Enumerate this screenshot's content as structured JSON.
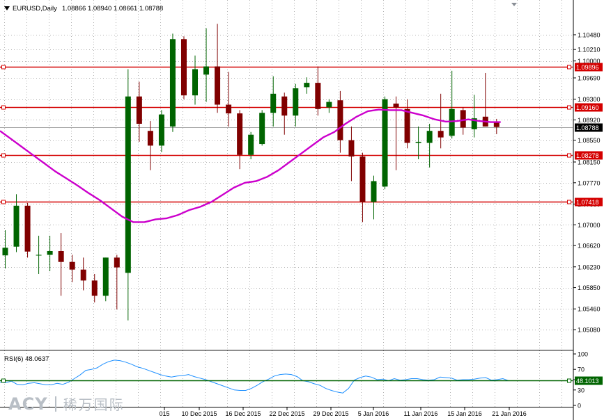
{
  "header": {
    "symbol": "EURUSD,Daily",
    "ohlc": "1.08866 1.08940 1.08661 1.08788",
    "rsi_label": "RSI(6) 48.0637",
    "dropdown_icon": "triangle-down-icon"
  },
  "watermark": {
    "brand": "ACY",
    "brand_cn": "稀万国际"
  },
  "colors": {
    "bull": "#006400",
    "bear": "#800000",
    "ma": "#cc00cc",
    "level": "#d40000",
    "rsi": "#1e90ff",
    "rsi_level": "#006400",
    "grid": "#b0b0b0",
    "axis_text": "#000000"
  },
  "chart_data": [
    {
      "type": "candlestick",
      "title": "EURUSD,Daily",
      "ylim": [
        1.0475,
        1.1104
      ],
      "y_ticks": [
        "1.10480",
        "1.10210",
        "1.10000",
        "1.09690",
        "1.09300",
        "1.08920",
        "1.08550",
        "1.08150",
        "1.07770",
        "1.07380",
        "1.07000",
        "1.06620",
        "1.06230",
        "1.05850",
        "1.05460",
        "1.05080"
      ],
      "x_ticks": [
        "015",
        "10 Dec 2015",
        "16 Dec 2015",
        "22 Dec 2015",
        "29 Dec 2015",
        "5 Jan 2016",
        "11 Jan 2016",
        "15 Jan 2016",
        "21 Jan 2016"
      ],
      "candles": [
        {
          "o": 1.0644,
          "h": 1.069,
          "l": 1.062,
          "c": 1.0658
        },
        {
          "o": 1.066,
          "h": 1.0756,
          "l": 1.065,
          "c": 1.0735
        },
        {
          "o": 1.0735,
          "h": 1.074,
          "l": 1.064,
          "c": 1.0651
        },
        {
          "o": 1.0645,
          "h": 1.068,
          "l": 1.061,
          "c": 1.0645
        },
        {
          "o": 1.0645,
          "h": 1.068,
          "l": 1.0615,
          "c": 1.0652
        },
        {
          "o": 1.0652,
          "h": 1.0685,
          "l": 1.057,
          "c": 1.0632
        },
        {
          "o": 1.0632,
          "h": 1.0645,
          "l": 1.0595,
          "c": 1.0618
        },
        {
          "o": 1.0618,
          "h": 1.064,
          "l": 1.058,
          "c": 1.0598
        },
        {
          "o": 1.0598,
          "h": 1.061,
          "l": 1.0558,
          "c": 1.057
        },
        {
          "o": 1.057,
          "h": 1.064,
          "l": 1.056,
          "c": 1.064
        },
        {
          "o": 1.064,
          "h": 1.0645,
          "l": 1.0545,
          "c": 1.0622
        },
        {
          "o": 1.0612,
          "h": 1.0985,
          "l": 1.0525,
          "c": 1.0935
        },
        {
          "o": 1.0935,
          "h": 1.0962,
          "l": 1.0852,
          "c": 1.0885
        },
        {
          "o": 1.0872,
          "h": 1.089,
          "l": 1.08,
          "c": 1.0845
        },
        {
          "o": 1.0845,
          "h": 1.091,
          "l": 1.0833,
          "c": 1.0902
        },
        {
          "o": 1.088,
          "h": 1.105,
          "l": 1.087,
          "c": 1.104
        },
        {
          "o": 1.104,
          "h": 1.1045,
          "l": 1.093,
          "c": 1.0937
        },
        {
          "o": 1.0937,
          "h": 1.101,
          "l": 1.092,
          "c": 1.0985
        },
        {
          "o": 1.0975,
          "h": 1.106,
          "l": 1.0925,
          "c": 1.099
        },
        {
          "o": 1.099,
          "h": 1.1068,
          "l": 1.0905,
          "c": 1.092
        },
        {
          "o": 1.092,
          "h": 1.098,
          "l": 1.088,
          "c": 1.0904
        },
        {
          "o": 1.0904,
          "h": 1.091,
          "l": 1.0802,
          "c": 1.0828
        },
        {
          "o": 1.0828,
          "h": 1.087,
          "l": 1.082,
          "c": 1.0865
        },
        {
          "o": 1.0848,
          "h": 1.091,
          "l": 1.0845,
          "c": 1.0905
        },
        {
          "o": 1.0905,
          "h": 1.0972,
          "l": 1.088,
          "c": 1.094
        },
        {
          "o": 1.0935,
          "h": 1.0942,
          "l": 1.0865,
          "c": 1.09
        },
        {
          "o": 1.09,
          "h": 1.0958,
          "l": 1.088,
          "c": 1.095
        },
        {
          "o": 1.0952,
          "h": 1.097,
          "l": 1.094,
          "c": 1.096
        },
        {
          "o": 1.096,
          "h": 1.099,
          "l": 1.09,
          "c": 1.0912
        },
        {
          "o": 1.0915,
          "h": 1.093,
          "l": 1.0905,
          "c": 1.0925
        },
        {
          "o": 1.0928,
          "h": 1.0945,
          "l": 1.0832,
          "c": 1.0855
        },
        {
          "o": 1.0855,
          "h": 1.088,
          "l": 1.078,
          "c": 1.0825
        },
        {
          "o": 1.0825,
          "h": 1.0832,
          "l": 1.0705,
          "c": 1.0742
        },
        {
          "o": 1.0742,
          "h": 1.079,
          "l": 1.071,
          "c": 1.078
        },
        {
          "o": 1.077,
          "h": 1.0935,
          "l": 1.0765,
          "c": 1.093
        },
        {
          "o": 1.0922,
          "h": 1.0935,
          "l": 1.08,
          "c": 1.0915
        },
        {
          "o": 1.0912,
          "h": 1.093,
          "l": 1.084,
          "c": 1.085
        },
        {
          "o": 1.085,
          "h": 1.088,
          "l": 1.082,
          "c": 1.0852
        },
        {
          "o": 1.085,
          "h": 1.0885,
          "l": 1.0805,
          "c": 1.0872
        },
        {
          "o": 1.0872,
          "h": 1.094,
          "l": 1.084,
          "c": 1.086
        },
        {
          "o": 1.0863,
          "h": 1.0982,
          "l": 1.0858,
          "c": 1.0912
        },
        {
          "o": 1.091,
          "h": 1.0915,
          "l": 1.0865,
          "c": 1.0878
        },
        {
          "o": 1.0875,
          "h": 1.0938,
          "l": 1.086,
          "c": 1.0895
        },
        {
          "o": 1.0898,
          "h": 1.0978,
          "l": 1.088,
          "c": 1.088
        },
        {
          "o": 1.0887,
          "h": 1.0894,
          "l": 1.0866,
          "c": 1.0879
        }
      ],
      "moving_average": [
        1.0872,
        1.0858,
        1.0843,
        1.0828,
        1.0813,
        1.0798,
        1.0785,
        1.0772,
        1.0758,
        1.0745,
        1.073,
        1.0715,
        1.0705,
        1.0705,
        1.071,
        1.0712,
        1.0718,
        1.0727,
        1.0733,
        1.0742,
        1.0755,
        1.0768,
        1.0777,
        1.078,
        1.0788,
        1.08,
        1.0815,
        1.083,
        1.0845,
        1.086,
        1.087,
        1.0885,
        1.0898,
        1.0908,
        1.0911,
        1.091,
        1.091,
        1.0905,
        1.09,
        1.0893,
        1.0889,
        1.089,
        1.0893,
        1.089,
        1.0888
      ],
      "horizontal_levels": [
        "1.09896",
        "1.09160",
        "1.08278",
        "1.07418"
      ],
      "current_price": "1.08788"
    },
    {
      "type": "line",
      "title": "RSI(6) 48.0637",
      "ylim": [
        0,
        100
      ],
      "y_ticks": [
        "100",
        "70",
        "50",
        "30",
        "0"
      ],
      "level": "48.1013",
      "values": [
        45,
        44,
        47,
        41,
        40,
        43,
        44,
        42,
        40,
        40,
        43,
        41,
        45,
        52,
        59,
        68,
        70,
        73,
        80,
        85,
        88,
        87,
        84,
        80,
        75,
        72,
        68,
        64,
        60,
        57,
        55,
        57,
        58,
        60,
        56,
        53,
        50,
        46,
        42,
        38,
        34,
        30,
        29,
        29,
        33,
        39,
        46,
        51,
        57,
        60,
        61,
        60,
        56,
        48,
        46,
        42,
        39,
        33,
        29,
        26,
        24,
        33,
        49,
        54,
        57,
        55,
        50,
        51,
        48,
        52,
        49,
        50,
        52,
        52,
        50,
        49,
        50,
        55,
        54,
        53,
        49,
        50,
        50,
        51,
        53,
        54,
        49,
        50,
        52,
        48
      ]
    }
  ]
}
